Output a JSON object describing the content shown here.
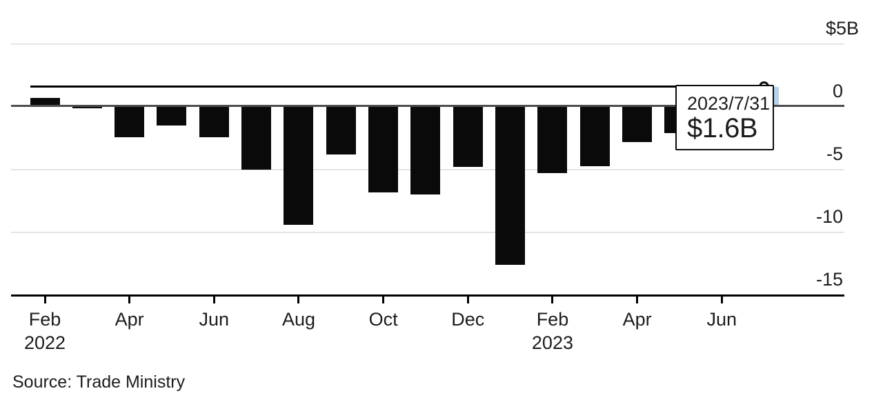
{
  "chart_data": {
    "type": "bar",
    "title": "",
    "unit": "USD billions",
    "categories": [
      "Feb 2022",
      "Mar 2022",
      "Apr 2022",
      "May 2022",
      "Jun 2022",
      "Jul 2022",
      "Aug 2022",
      "Sep 2022",
      "Oct 2022",
      "Nov 2022",
      "Dec 2022",
      "Jan 2023",
      "Feb 2023",
      "Mar 2023",
      "Apr 2023",
      "May 2023",
      "Jun 2023",
      "Jul 2023"
    ],
    "values": [
      0.7,
      -0.1,
      -2.4,
      -1.5,
      -2.4,
      -5.0,
      -9.4,
      -3.8,
      -6.8,
      -7.0,
      -4.8,
      -12.6,
      -5.3,
      -4.7,
      -2.8,
      -2.1,
      null,
      1.6
    ],
    "ylim": [
      -15,
      5
    ],
    "grid": true,
    "legend": "none",
    "y_ticks": [
      {
        "label": "$5B",
        "value": 5
      },
      {
        "label": "0",
        "value": 0
      },
      {
        "label": "-5",
        "value": -5
      },
      {
        "label": "-10",
        "value": -10
      },
      {
        "label": "-15",
        "value": -15
      }
    ],
    "x_ticks": [
      {
        "label": "Feb",
        "year": "2022",
        "index": 0
      },
      {
        "label": "Apr",
        "index": 2
      },
      {
        "label": "Jun",
        "index": 4
      },
      {
        "label": "Aug",
        "index": 6
      },
      {
        "label": "Oct",
        "index": 8
      },
      {
        "label": "Dec",
        "index": 10
      },
      {
        "label": "Feb",
        "year": "2023",
        "index": 12
      },
      {
        "label": "Apr",
        "index": 14
      },
      {
        "label": "Jun",
        "index": 16
      }
    ],
    "hover": {
      "index": 17,
      "reference_line_value": 1.6,
      "marker": "open-circle",
      "notes": "Jun 2023 bar hidden behind tooltip; Jul 2023 hovered bar highlighted blue"
    }
  },
  "tooltip": {
    "date": "2023/7/31",
    "value": "$1.6B"
  },
  "source_line": "Source: Trade Ministry",
  "colors": {
    "bar": "#0a0a0a",
    "highlight_bar": "#b7d2e8",
    "grid": "#e4e4e4",
    "zero_line": "#4d4d4f",
    "value_line": "#000000",
    "axis": "#000000",
    "text": "#1c1c1c",
    "tooltip_bg": "#ffffff",
    "tooltip_border": "#0a0a0a"
  }
}
